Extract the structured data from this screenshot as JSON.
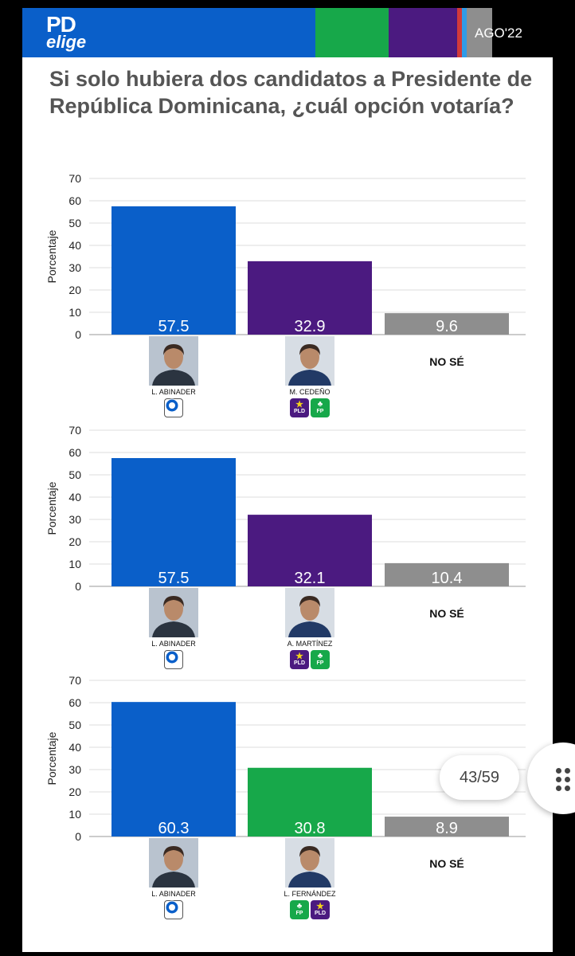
{
  "header": {
    "logo_top": "PD",
    "logo_bottom": "elige",
    "date": "AGO'22",
    "colors": {
      "blue": "#0a5fc9",
      "green": "#17a84a",
      "purple": "#4b1a80",
      "gray": "#8e8e8e",
      "black": "#000000"
    }
  },
  "title": "Si solo hubiera dos candidatos a Presidente de República Dominicana, ¿cuál opción votaría?",
  "pager": {
    "label": "43/59"
  },
  "chart_data": [
    {
      "type": "bar",
      "ylabel": "Porcentaje",
      "ylim": [
        0,
        70
      ],
      "yticks": [
        "70",
        "60",
        "50",
        "40",
        "30",
        "20",
        "10",
        "0"
      ],
      "categories": [
        "L. ABINADER",
        "M. CEDEÑO",
        "NO SÉ"
      ],
      "values": [
        57.5,
        32.9,
        9.6
      ],
      "value_labels": [
        "57.5",
        "32.9",
        "9.6"
      ],
      "colors": [
        "#0a5fc9",
        "#4b1a80",
        "#8e8e8e"
      ],
      "parties": [
        [
          "PRM"
        ],
        [
          "PLD",
          "FP"
        ],
        []
      ]
    },
    {
      "type": "bar",
      "ylabel": "Porcentaje",
      "ylim": [
        0,
        70
      ],
      "yticks": [
        "70",
        "60",
        "50",
        "40",
        "30",
        "20",
        "10",
        "0"
      ],
      "categories": [
        "L. ABINADER",
        "A. MARTÍNEZ",
        "NO SÉ"
      ],
      "values": [
        57.5,
        32.1,
        10.4
      ],
      "value_labels": [
        "57.5",
        "32.1",
        "10.4"
      ],
      "colors": [
        "#0a5fc9",
        "#4b1a80",
        "#8e8e8e"
      ],
      "parties": [
        [
          "PRM"
        ],
        [
          "PLD",
          "FP"
        ],
        []
      ]
    },
    {
      "type": "bar",
      "ylabel": "Porcentaje",
      "ylim": [
        0,
        70
      ],
      "yticks": [
        "70",
        "60",
        "50",
        "40",
        "30",
        "20",
        "10",
        "0"
      ],
      "categories": [
        "L. ABINADER",
        "L. FERNÁNDEZ",
        "NO SÉ"
      ],
      "values": [
        60.3,
        30.8,
        8.9
      ],
      "value_labels": [
        "60.3",
        "30.8",
        "8.9"
      ],
      "colors": [
        "#0a5fc9",
        "#17a84a",
        "#8e8e8e"
      ],
      "parties": [
        [
          "PRM"
        ],
        [
          "FP",
          "PLD"
        ],
        []
      ]
    }
  ]
}
